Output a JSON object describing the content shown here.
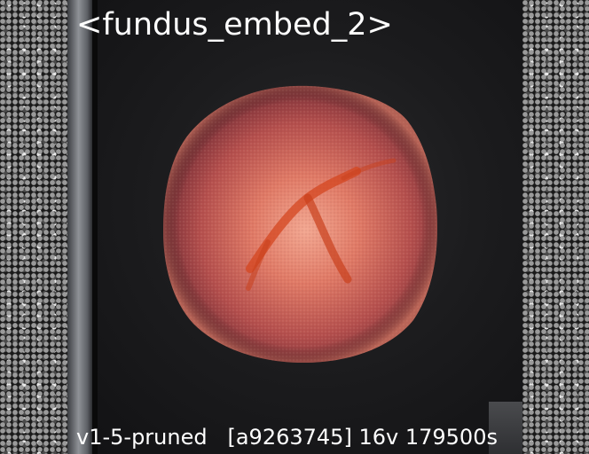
{
  "title": "<fundus_embed_2>",
  "caption": {
    "model": "v1-5-pruned",
    "hash": "[a9263745]",
    "vectors": "16v",
    "steps": "179500s"
  },
  "image": {
    "subject": "retinal-fundus-render",
    "colors": {
      "disc_center": "#f0a08a",
      "disc_mid": "#c9604e",
      "disc_edge": "#7a2e35",
      "vessel": "#d4461f"
    }
  }
}
